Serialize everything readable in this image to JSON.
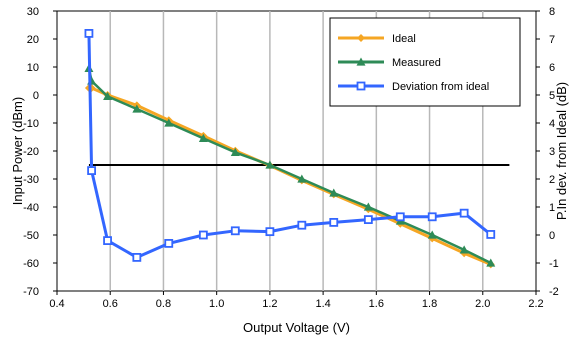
{
  "chart_data": {
    "type": "line",
    "xlabel": "Output Voltage (V)",
    "ylabel": "Input Power (dBm)",
    "y2label": "P.In dev. from Ideal (dB)",
    "xlim": [
      0.4,
      2.2
    ],
    "ylim": [
      -70,
      30
    ],
    "y2lim": [
      -2,
      8
    ],
    "xticks": [
      0.4,
      0.6,
      0.8,
      1.0,
      1.2,
      1.4,
      1.6,
      1.8,
      2.0,
      2.2
    ],
    "xticklabels": [
      "0.4",
      "0.6",
      "0.8",
      "1.0",
      "1.2",
      "1.4",
      "1.6",
      "1.8",
      "2.0",
      "2.2"
    ],
    "yticks": [
      30,
      20,
      10,
      0,
      -10,
      -20,
      -30,
      -40,
      -50,
      -60,
      -70
    ],
    "yticklabels": [
      "30",
      "20",
      "10",
      "0",
      "-10",
      "-20",
      "-30",
      "-40",
      "-50",
      "-60",
      "-70"
    ],
    "y2ticks": [
      8,
      7,
      6,
      5,
      4,
      3,
      2,
      1,
      0,
      -1,
      -2
    ],
    "y2ticklabels": [
      "8",
      "7",
      "6",
      "5",
      "4",
      "3",
      "2",
      "1",
      "0",
      "-1",
      "-2"
    ],
    "grid": "vertical",
    "legend_position": "top-right",
    "threshold_line": {
      "y": -25,
      "x_start": 0.52,
      "x_end": 2.1,
      "color": "#000000"
    },
    "series": [
      {
        "name": "Ideal",
        "axis": "left",
        "color": "#F5A623",
        "marker": "diamond",
        "points": [
          [
            0.52,
            2.5
          ],
          [
            0.53,
            2.5
          ],
          [
            0.59,
            0
          ],
          [
            0.7,
            -3.7
          ],
          [
            0.82,
            -9
          ],
          [
            0.95,
            -14.6
          ],
          [
            1.07,
            -19.9
          ],
          [
            1.2,
            -25.2
          ],
          [
            1.32,
            -30.5
          ],
          [
            1.44,
            -35.5
          ],
          [
            1.57,
            -40.8
          ],
          [
            1.69,
            -46
          ],
          [
            1.81,
            -51.2
          ],
          [
            1.93,
            -56.5
          ],
          [
            2.03,
            -60.5
          ]
        ]
      },
      {
        "name": "Measured",
        "axis": "left",
        "color": "#2E8B57",
        "marker": "triangle",
        "points": [
          [
            0.52,
            9.5
          ],
          [
            0.53,
            5
          ],
          [
            0.59,
            -0.5
          ],
          [
            0.7,
            -5
          ],
          [
            0.82,
            -10
          ],
          [
            0.95,
            -15.5
          ],
          [
            1.07,
            -20.5
          ],
          [
            1.2,
            -25
          ],
          [
            1.32,
            -30
          ],
          [
            1.44,
            -35
          ],
          [
            1.57,
            -40
          ],
          [
            1.69,
            -45
          ],
          [
            1.81,
            -50
          ],
          [
            1.93,
            -55.3
          ],
          [
            2.03,
            -60
          ]
        ]
      },
      {
        "name": "Deviation from ideal",
        "axis": "right",
        "color": "#3366FF",
        "marker": "square",
        "points": [
          [
            0.52,
            7.2
          ],
          [
            0.53,
            2.3
          ],
          [
            0.59,
            -0.2
          ],
          [
            0.7,
            -0.8
          ],
          [
            0.82,
            -0.3
          ],
          [
            0.95,
            0
          ],
          [
            1.07,
            0.15
          ],
          [
            1.2,
            0.12
          ],
          [
            1.32,
            0.35
          ],
          [
            1.44,
            0.45
          ],
          [
            1.57,
            0.55
          ],
          [
            1.69,
            0.65
          ],
          [
            1.81,
            0.65
          ],
          [
            1.93,
            0.78
          ],
          [
            2.03,
            0.02
          ]
        ]
      }
    ]
  }
}
